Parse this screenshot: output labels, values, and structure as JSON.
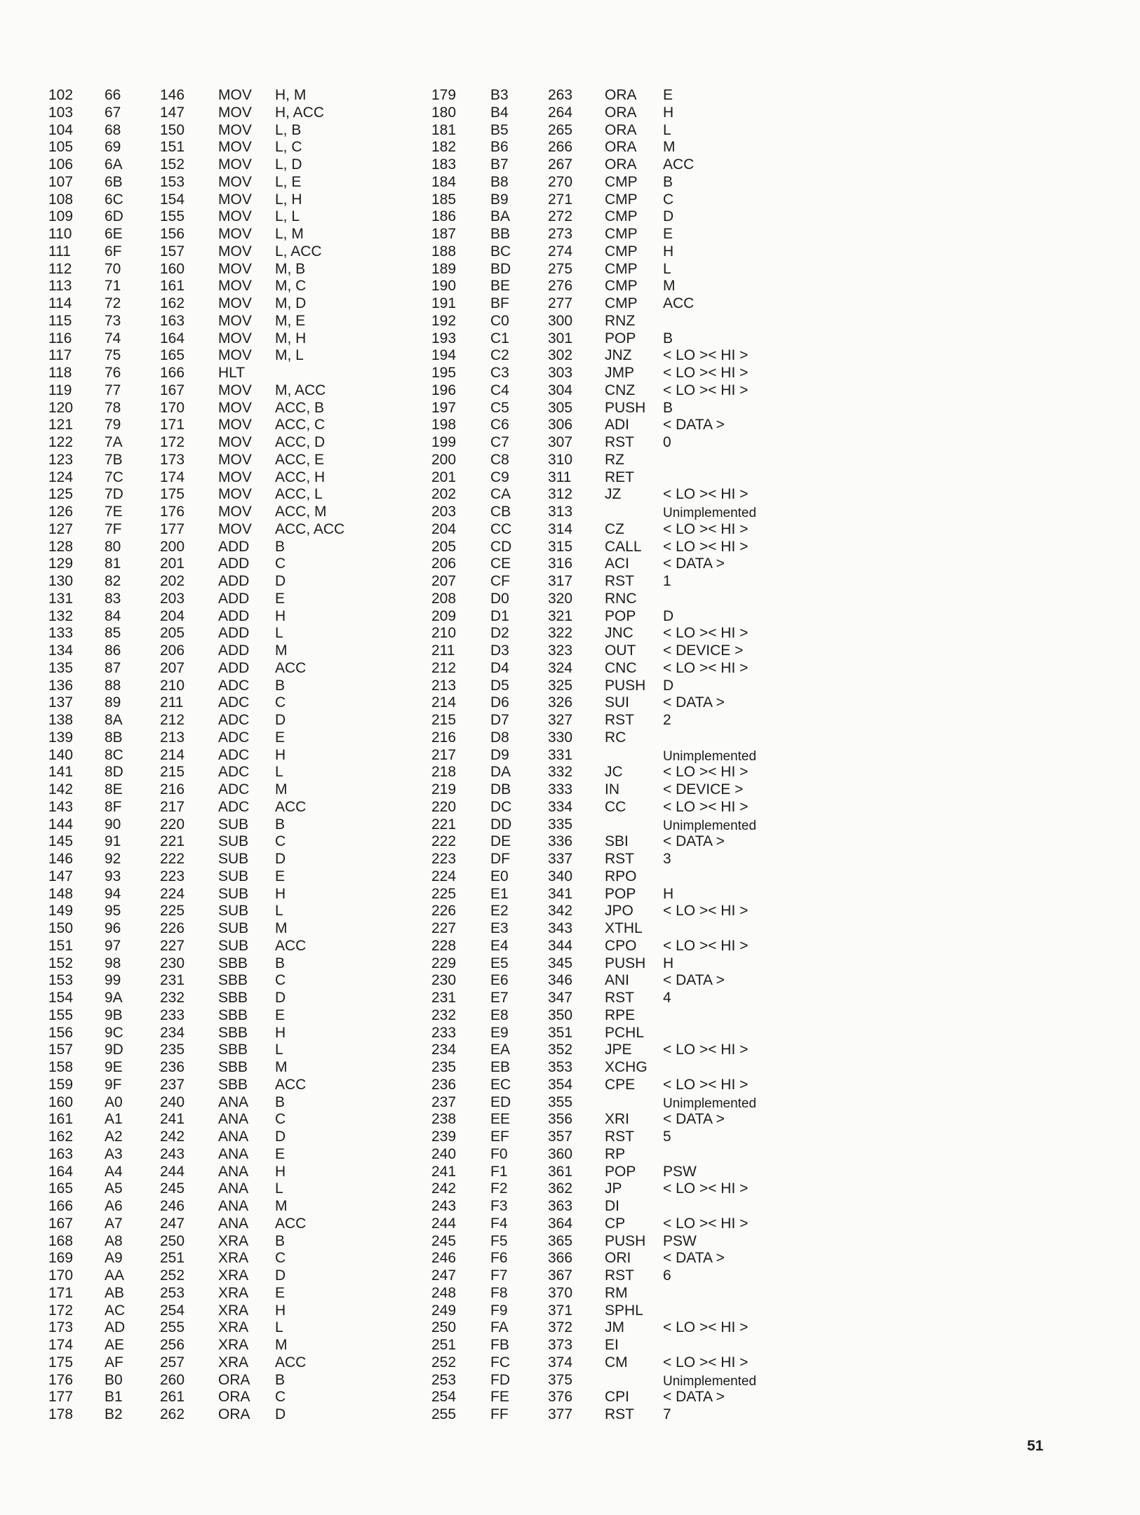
{
  "page_number": "51",
  "left_rows": [
    [
      "102",
      "66",
      "146",
      "MOV",
      "H, M"
    ],
    [
      "103",
      "67",
      "147",
      "MOV",
      "H, ACC"
    ],
    [
      "104",
      "68",
      "150",
      "MOV",
      "L, B"
    ],
    [
      "105",
      "69",
      "151",
      "MOV",
      "L, C"
    ],
    [
      "106",
      "6A",
      "152",
      "MOV",
      "L, D"
    ],
    [
      "107",
      "6B",
      "153",
      "MOV",
      "L, E"
    ],
    [
      "108",
      "6C",
      "154",
      "MOV",
      "L, H"
    ],
    [
      "109",
      "6D",
      "155",
      "MOV",
      "L, L"
    ],
    [
      "110",
      "6E",
      "156",
      "MOV",
      "L, M"
    ],
    [
      "111",
      "6F",
      "157",
      "MOV",
      "L, ACC"
    ],
    [
      "112",
      "70",
      "160",
      "MOV",
      "M, B"
    ],
    [
      "113",
      "71",
      "161",
      "MOV",
      "M, C"
    ],
    [
      "114",
      "72",
      "162",
      "MOV",
      "M, D"
    ],
    [
      "115",
      "73",
      "163",
      "MOV",
      "M, E"
    ],
    [
      "116",
      "74",
      "164",
      "MOV",
      "M, H"
    ],
    [
      "117",
      "75",
      "165",
      "MOV",
      "M, L"
    ],
    [
      "118",
      "76",
      "166",
      "HLT",
      ""
    ],
    [
      "119",
      "77",
      "167",
      "MOV",
      "M, ACC"
    ],
    [
      "120",
      "78",
      "170",
      "MOV",
      "ACC, B"
    ],
    [
      "121",
      "79",
      "171",
      "MOV",
      "ACC, C"
    ],
    [
      "122",
      "7A",
      "172",
      "MOV",
      "ACC, D"
    ],
    [
      "123",
      "7B",
      "173",
      "MOV",
      "ACC, E"
    ],
    [
      "124",
      "7C",
      "174",
      "MOV",
      "ACC, H"
    ],
    [
      "125",
      "7D",
      "175",
      "MOV",
      "ACC, L"
    ],
    [
      "126",
      "7E",
      "176",
      "MOV",
      "ACC, M"
    ],
    [
      "127",
      "7F",
      "177",
      "MOV",
      "ACC, ACC"
    ],
    [
      "128",
      "80",
      "200",
      "ADD",
      "B"
    ],
    [
      "129",
      "81",
      "201",
      "ADD",
      "C"
    ],
    [
      "130",
      "82",
      "202",
      "ADD",
      "D"
    ],
    [
      "131",
      "83",
      "203",
      "ADD",
      "E"
    ],
    [
      "132",
      "84",
      "204",
      "ADD",
      "H"
    ],
    [
      "133",
      "85",
      "205",
      "ADD",
      "L"
    ],
    [
      "134",
      "86",
      "206",
      "ADD",
      "M"
    ],
    [
      "135",
      "87",
      "207",
      "ADD",
      "ACC"
    ],
    [
      "136",
      "88",
      "210",
      "ADC",
      "B"
    ],
    [
      "137",
      "89",
      "211",
      "ADC",
      "C"
    ],
    [
      "138",
      "8A",
      "212",
      "ADC",
      "D"
    ],
    [
      "139",
      "8B",
      "213",
      "ADC",
      "E"
    ],
    [
      "140",
      "8C",
      "214",
      "ADC",
      "H"
    ],
    [
      "141",
      "8D",
      "215",
      "ADC",
      "L"
    ],
    [
      "142",
      "8E",
      "216",
      "ADC",
      "M"
    ],
    [
      "143",
      "8F",
      "217",
      "ADC",
      "ACC"
    ],
    [
      "144",
      "90",
      "220",
      "SUB",
      "B"
    ],
    [
      "145",
      "91",
      "221",
      "SUB",
      "C"
    ],
    [
      "146",
      "92",
      "222",
      "SUB",
      "D"
    ],
    [
      "147",
      "93",
      "223",
      "SUB",
      "E"
    ],
    [
      "148",
      "94",
      "224",
      "SUB",
      "H"
    ],
    [
      "149",
      "95",
      "225",
      "SUB",
      "L"
    ],
    [
      "150",
      "96",
      "226",
      "SUB",
      "M"
    ],
    [
      "151",
      "97",
      "227",
      "SUB",
      "ACC"
    ],
    [
      "152",
      "98",
      "230",
      "SBB",
      "B"
    ],
    [
      "153",
      "99",
      "231",
      "SBB",
      "C"
    ],
    [
      "154",
      "9A",
      "232",
      "SBB",
      "D"
    ],
    [
      "155",
      "9B",
      "233",
      "SBB",
      "E"
    ],
    [
      "156",
      "9C",
      "234",
      "SBB",
      "H"
    ],
    [
      "157",
      "9D",
      "235",
      "SBB",
      "L"
    ],
    [
      "158",
      "9E",
      "236",
      "SBB",
      "M"
    ],
    [
      "159",
      "9F",
      "237",
      "SBB",
      "ACC"
    ],
    [
      "160",
      "A0",
      "240",
      "ANA",
      "B"
    ],
    [
      "161",
      "A1",
      "241",
      "ANA",
      "C"
    ],
    [
      "162",
      "A2",
      "242",
      "ANA",
      "D"
    ],
    [
      "163",
      "A3",
      "243",
      "ANA",
      "E"
    ],
    [
      "164",
      "A4",
      "244",
      "ANA",
      "H"
    ],
    [
      "165",
      "A5",
      "245",
      "ANA",
      "L"
    ],
    [
      "166",
      "A6",
      "246",
      "ANA",
      "M"
    ],
    [
      "167",
      "A7",
      "247",
      "ANA",
      "ACC"
    ],
    [
      "168",
      "A8",
      "250",
      "XRA",
      "B"
    ],
    [
      "169",
      "A9",
      "251",
      "XRA",
      "C"
    ],
    [
      "170",
      "AA",
      "252",
      "XRA",
      "D"
    ],
    [
      "171",
      "AB",
      "253",
      "XRA",
      "E"
    ],
    [
      "172",
      "AC",
      "254",
      "XRA",
      "H"
    ],
    [
      "173",
      "AD",
      "255",
      "XRA",
      "L"
    ],
    [
      "174",
      "AE",
      "256",
      "XRA",
      "M"
    ],
    [
      "175",
      "AF",
      "257",
      "XRA",
      "ACC"
    ],
    [
      "176",
      "B0",
      "260",
      "ORA",
      "B"
    ],
    [
      "177",
      "B1",
      "261",
      "ORA",
      "C"
    ],
    [
      "178",
      "B2",
      "262",
      "ORA",
      "D"
    ]
  ],
  "right_rows": [
    [
      "179",
      "B3",
      "263",
      "ORA",
      "E"
    ],
    [
      "180",
      "B4",
      "264",
      "ORA",
      "H"
    ],
    [
      "181",
      "B5",
      "265",
      "ORA",
      "L"
    ],
    [
      "182",
      "B6",
      "266",
      "ORA",
      "M"
    ],
    [
      "183",
      "B7",
      "267",
      "ORA",
      "ACC"
    ],
    [
      "184",
      "B8",
      "270",
      "CMP",
      "B"
    ],
    [
      "185",
      "B9",
      "271",
      "CMP",
      "C"
    ],
    [
      "186",
      "BA",
      "272",
      "CMP",
      "D"
    ],
    [
      "187",
      "BB",
      "273",
      "CMP",
      "E"
    ],
    [
      "188",
      "BC",
      "274",
      "CMP",
      "H"
    ],
    [
      "189",
      "BD",
      "275",
      "CMP",
      "L"
    ],
    [
      "190",
      "BE",
      "276",
      "CMP",
      "M"
    ],
    [
      "191",
      "BF",
      "277",
      "CMP",
      "ACC"
    ],
    [
      "192",
      "C0",
      "300",
      "RNZ",
      ""
    ],
    [
      "193",
      "C1",
      "301",
      "POP",
      "B"
    ],
    [
      "194",
      "C2",
      "302",
      "JNZ",
      "< LO >< HI >"
    ],
    [
      "195",
      "C3",
      "303",
      "JMP",
      "< LO >< HI >"
    ],
    [
      "196",
      "C4",
      "304",
      "CNZ",
      "< LO >< HI >"
    ],
    [
      "197",
      "C5",
      "305",
      "PUSH",
      "B"
    ],
    [
      "198",
      "C6",
      "306",
      "ADI",
      "< DATA >"
    ],
    [
      "199",
      "C7",
      "307",
      "RST",
      "0"
    ],
    [
      "200",
      "C8",
      "310",
      "RZ",
      ""
    ],
    [
      "201",
      "C9",
      "311",
      "RET",
      ""
    ],
    [
      "202",
      "CA",
      "312",
      "JZ",
      "< LO >< HI >"
    ],
    [
      "203",
      "CB",
      "313",
      "",
      "Unimplemented"
    ],
    [
      "204",
      "CC",
      "314",
      "CZ",
      "< LO >< HI >"
    ],
    [
      "205",
      "CD",
      "315",
      "CALL",
      "< LO >< HI >"
    ],
    [
      "206",
      "CE",
      "316",
      "ACI",
      "< DATA >"
    ],
    [
      "207",
      "CF",
      "317",
      "RST",
      "1"
    ],
    [
      "208",
      "D0",
      "320",
      "RNC",
      ""
    ],
    [
      "209",
      "D1",
      "321",
      "POP",
      "D"
    ],
    [
      "210",
      "D2",
      "322",
      "JNC",
      "< LO >< HI >"
    ],
    [
      "211",
      "D3",
      "323",
      "OUT",
      "< DEVICE >"
    ],
    [
      "212",
      "D4",
      "324",
      "CNC",
      "< LO >< HI >"
    ],
    [
      "213",
      "D5",
      "325",
      "PUSH",
      "D"
    ],
    [
      "214",
      "D6",
      "326",
      "SUI",
      "< DATA >"
    ],
    [
      "215",
      "D7",
      "327",
      "RST",
      "2"
    ],
    [
      "216",
      "D8",
      "330",
      "RC",
      ""
    ],
    [
      "217",
      "D9",
      "331",
      "",
      "Unimplemented"
    ],
    [
      "218",
      "DA",
      "332",
      "JC",
      "< LO >< HI >"
    ],
    [
      "219",
      "DB",
      "333",
      "IN",
      "< DEVICE >"
    ],
    [
      "220",
      "DC",
      "334",
      "CC",
      "< LO >< HI >"
    ],
    [
      "221",
      "DD",
      "335",
      "",
      "Unimplemented"
    ],
    [
      "222",
      "DE",
      "336",
      "SBI",
      "< DATA >"
    ],
    [
      "223",
      "DF",
      "337",
      "RST",
      "3"
    ],
    [
      "224",
      "E0",
      "340",
      "RPO",
      ""
    ],
    [
      "225",
      "E1",
      "341",
      "POP",
      "H"
    ],
    [
      "226",
      "E2",
      "342",
      "JPO",
      "< LO >< HI >"
    ],
    [
      "227",
      "E3",
      "343",
      "XTHL",
      ""
    ],
    [
      "228",
      "E4",
      "344",
      "CPO",
      "< LO >< HI >"
    ],
    [
      "229",
      "E5",
      "345",
      "PUSH",
      "H"
    ],
    [
      "230",
      "E6",
      "346",
      "ANI",
      "< DATA >"
    ],
    [
      "231",
      "E7",
      "347",
      "RST",
      "4"
    ],
    [
      "232",
      "E8",
      "350",
      "RPE",
      ""
    ],
    [
      "233",
      "E9",
      "351",
      "PCHL",
      ""
    ],
    [
      "234",
      "EA",
      "352",
      "JPE",
      "< LO >< HI >"
    ],
    [
      "235",
      "EB",
      "353",
      "XCHG",
      ""
    ],
    [
      "236",
      "EC",
      "354",
      "CPE",
      "< LO >< HI >"
    ],
    [
      "237",
      "ED",
      "355",
      "",
      "Unimplemented"
    ],
    [
      "238",
      "EE",
      "356",
      "XRI",
      "< DATA >"
    ],
    [
      "239",
      "EF",
      "357",
      "RST",
      "5"
    ],
    [
      "240",
      "F0",
      "360",
      "RP",
      ""
    ],
    [
      "241",
      "F1",
      "361",
      "POP",
      "PSW"
    ],
    [
      "242",
      "F2",
      "362",
      "JP",
      "< LO >< HI >"
    ],
    [
      "243",
      "F3",
      "363",
      "DI",
      ""
    ],
    [
      "244",
      "F4",
      "364",
      "CP",
      "< LO >< HI >"
    ],
    [
      "245",
      "F5",
      "365",
      "PUSH",
      "PSW"
    ],
    [
      "246",
      "F6",
      "366",
      "ORI",
      "< DATA >"
    ],
    [
      "247",
      "F7",
      "367",
      "RST",
      "6"
    ],
    [
      "248",
      "F8",
      "370",
      "RM",
      ""
    ],
    [
      "249",
      "F9",
      "371",
      "SPHL",
      ""
    ],
    [
      "250",
      "FA",
      "372",
      "JM",
      "< LO >< HI >"
    ],
    [
      "251",
      "FB",
      "373",
      "EI",
      ""
    ],
    [
      "252",
      "FC",
      "374",
      "CM",
      "< LO >< HI >"
    ],
    [
      "253",
      "FD",
      "375",
      "",
      "Unimplemented"
    ],
    [
      "254",
      "FE",
      "376",
      "CPI",
      "< DATA >"
    ],
    [
      "255",
      "FF",
      "377",
      "RST",
      "7"
    ]
  ]
}
